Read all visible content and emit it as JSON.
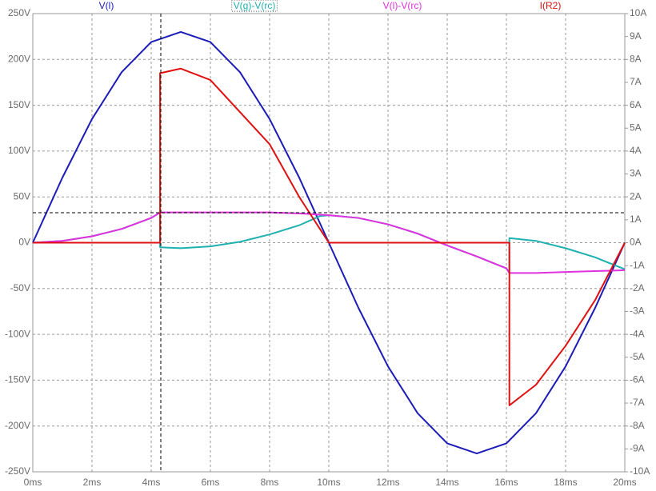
{
  "chart_data": {
    "type": "line",
    "grid": true,
    "xticks": [
      {
        "value": 0,
        "label": "0ms"
      },
      {
        "value": 2,
        "label": "2ms"
      },
      {
        "value": 4,
        "label": "4ms"
      },
      {
        "value": 6,
        "label": "6ms"
      },
      {
        "value": 8,
        "label": "8ms"
      },
      {
        "value": 10,
        "label": "10ms"
      },
      {
        "value": 12,
        "label": "12ms"
      },
      {
        "value": 14,
        "label": "14ms"
      },
      {
        "value": 16,
        "label": "16ms"
      },
      {
        "value": 18,
        "label": "18ms"
      },
      {
        "value": 20,
        "label": "20ms"
      }
    ],
    "xlim": [
      0,
      20
    ],
    "ylim": [
      -250,
      250
    ],
    "yticks": [
      {
        "value": -250,
        "label": "-250V"
      },
      {
        "value": -200,
        "label": "-200V"
      },
      {
        "value": -150,
        "label": "-150V"
      },
      {
        "value": -100,
        "label": "-100V"
      },
      {
        "value": -50,
        "label": "-50V"
      },
      {
        "value": 0,
        "label": "0V"
      },
      {
        "value": 50,
        "label": "50V"
      },
      {
        "value": 100,
        "label": "100V"
      },
      {
        "value": 150,
        "label": "150V"
      },
      {
        "value": 200,
        "label": "200V"
      },
      {
        "value": 250,
        "label": "250V"
      }
    ],
    "y2lim": [
      -10,
      10
    ],
    "y2ticks": [
      {
        "value": -10,
        "label": "-10A"
      },
      {
        "value": -9,
        "label": "-9A"
      },
      {
        "value": -8,
        "label": "-8A"
      },
      {
        "value": -7,
        "label": "-7A"
      },
      {
        "value": -6,
        "label": "-6A"
      },
      {
        "value": -5,
        "label": "-5A"
      },
      {
        "value": -4,
        "label": "-4A"
      },
      {
        "value": -3,
        "label": "-3A"
      },
      {
        "value": -2,
        "label": "-2A"
      },
      {
        "value": -1,
        "label": "-1A"
      },
      {
        "value": 0,
        "label": "0A"
      },
      {
        "value": 1,
        "label": "1A"
      },
      {
        "value": 2,
        "label": "2A"
      },
      {
        "value": 3,
        "label": "3A"
      },
      {
        "value": 4,
        "label": "4A"
      },
      {
        "value": 5,
        "label": "5A"
      },
      {
        "value": 6,
        "label": "6A"
      },
      {
        "value": 7,
        "label": "7A"
      },
      {
        "value": 8,
        "label": "8A"
      },
      {
        "value": 9,
        "label": "9A"
      },
      {
        "value": 10,
        "label": "10A"
      }
    ],
    "series": [
      {
        "name": "V(l)",
        "color": "#1c1cb8",
        "x": [
          0,
          1,
          2,
          3,
          4,
          5,
          6,
          7,
          8,
          9,
          10,
          11,
          12,
          13,
          14,
          15,
          16,
          17,
          18,
          19,
          20
        ],
        "values": [
          0,
          71,
          135,
          186,
          219,
          230,
          219,
          186,
          135,
          71,
          0,
          -71,
          -135,
          -186,
          -219,
          -230,
          -219,
          -186,
          -135,
          -71,
          0
        ]
      },
      {
        "name": "V(g)-V(rc)",
        "color": "#1fb0b0",
        "x": [
          0,
          1,
          2,
          3,
          4,
          4.3,
          4.3,
          5,
          6,
          7,
          8,
          9,
          9.7,
          10,
          11,
          12,
          13,
          14,
          15,
          16,
          16.1,
          16.1,
          17,
          18,
          19,
          20
        ],
        "values": [
          0,
          2,
          7,
          15,
          27,
          33,
          -5,
          -6,
          -4,
          1,
          9,
          19,
          29,
          30,
          27,
          20,
          10,
          -3,
          -15,
          -28,
          -33,
          5,
          2,
          -6,
          -16,
          -29
        ]
      },
      {
        "name": "V(l)-V(rc)",
        "color": "#e030e0",
        "x": [
          0,
          1,
          2,
          3,
          4,
          4.3,
          5,
          6,
          7,
          8,
          9,
          10,
          11,
          12,
          13,
          14,
          15,
          16,
          16.1,
          17,
          18,
          19,
          20
        ],
        "values": [
          0,
          2,
          7,
          15,
          27,
          33,
          33,
          33,
          33,
          33,
          32,
          30,
          27,
          20,
          10,
          -3,
          -15,
          -28,
          -33,
          -33,
          -32,
          -31,
          -30
        ]
      },
      {
        "name": "I(R2)",
        "color": "#e01010",
        "axis": "y2",
        "x": [
          0,
          4.3,
          4.3,
          5,
          6,
          7,
          8,
          9,
          9.5,
          10,
          16.1,
          16.1,
          17,
          18,
          19,
          20
        ],
        "values": [
          0,
          0,
          7.4,
          7.6,
          7.1,
          5.7,
          4.3,
          2.0,
          1.0,
          0,
          0,
          -7.1,
          -6.2,
          -4.5,
          -2.5,
          0
        ]
      }
    ]
  }
}
